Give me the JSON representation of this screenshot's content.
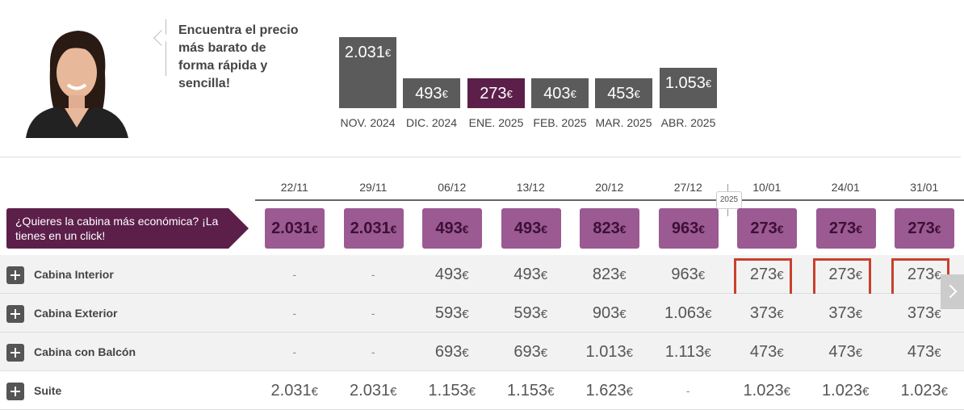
{
  "promo": {
    "headline": "Encuentra el precio más barato de forma rápida y sencilla!"
  },
  "months": [
    {
      "label": "NOV. 2024",
      "price": "2.031",
      "currency": "€",
      "active": false
    },
    {
      "label": "DIC. 2024",
      "price": "493",
      "currency": "€",
      "active": false
    },
    {
      "label": "ENE. 2025",
      "price": "273",
      "currency": "€",
      "active": true
    },
    {
      "label": "FEB. 2025",
      "price": "403",
      "currency": "€",
      "active": false
    },
    {
      "label": "MAR. 2025",
      "price": "453",
      "currency": "€",
      "active": false
    },
    {
      "label": "ABR. 2025",
      "price": "1.053",
      "currency": "€",
      "active": false
    }
  ],
  "table": {
    "year_marker": "2025",
    "dates": [
      "22/11",
      "29/11",
      "06/12",
      "13/12",
      "20/12",
      "27/12",
      "10/01",
      "24/01",
      "31/01"
    ],
    "cheapest_banner": "¿Quieres la cabina más económica? ¡La tienes en un click!",
    "cheapest": [
      "2.031€",
      "2.031€",
      "493€",
      "493€",
      "823€",
      "963€",
      "273€",
      "273€",
      "273€"
    ],
    "rows": [
      {
        "label": "Cabina Interior",
        "prices": [
          "-",
          "-",
          "493€",
          "493€",
          "823€",
          "963€",
          "273€",
          "273€",
          "273€"
        ]
      },
      {
        "label": "Cabina Exterior",
        "prices": [
          "-",
          "-",
          "593€",
          "593€",
          "903€",
          "1.063€",
          "373€",
          "373€",
          "373€"
        ]
      },
      {
        "label": "Cabina con Balcón",
        "prices": [
          "-",
          "-",
          "693€",
          "693€",
          "1.013€",
          "1.113€",
          "473€",
          "473€",
          "473€"
        ]
      },
      {
        "label": "Suite",
        "prices": [
          "2.031€",
          "2.031€",
          "1.153€",
          "1.153€",
          "1.623€",
          "-",
          "1.023€",
          "1.023€",
          "1.023€"
        ]
      }
    ]
  },
  "colors": {
    "accent_dark": "#5c1f4a",
    "accent_light": "#9b5a92",
    "highlight_border": "#c8402c",
    "bar_gray": "#5b5b5b"
  }
}
